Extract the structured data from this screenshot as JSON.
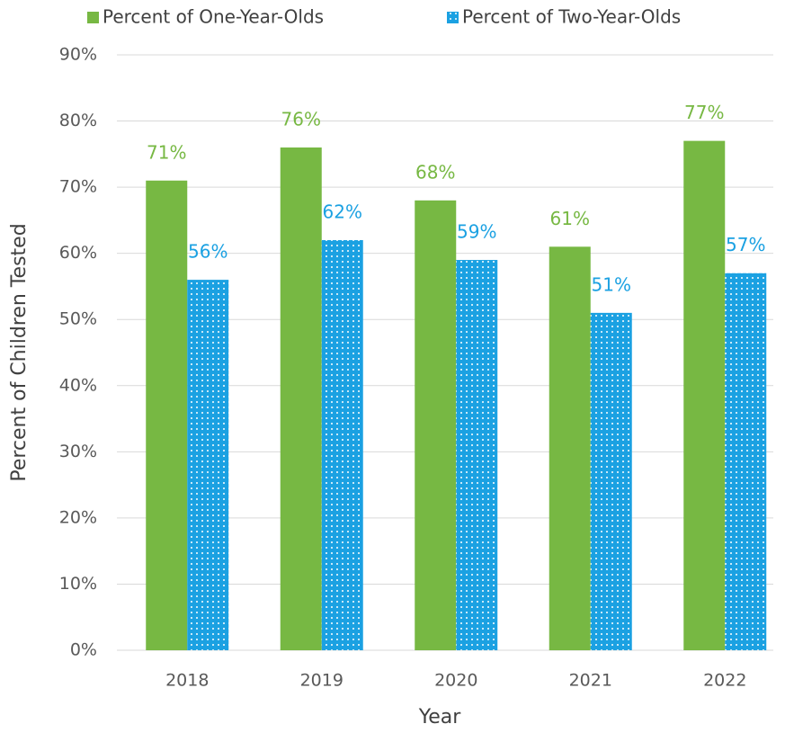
{
  "chart_data": {
    "type": "bar",
    "categories": [
      "2018",
      "2019",
      "2020",
      "2021",
      "2022"
    ],
    "series": [
      {
        "name": "Percent of One-Year-Olds",
        "color": "#77b843",
        "values": [
          71,
          76,
          68,
          61,
          77
        ],
        "value_labels": [
          "71%",
          "76%",
          "68%",
          "61%",
          "77%"
        ]
      },
      {
        "name": "Percent of Two-Year-Olds",
        "color": "#1ba1e2",
        "values": [
          56,
          62,
          59,
          51,
          57
        ],
        "value_labels": [
          "56%",
          "62%",
          "59%",
          "51%",
          "57%"
        ]
      }
    ],
    "x_label": "Year",
    "y_label": "Percent of Children Tested",
    "ylim": [
      0,
      90
    ],
    "yticks": [
      {
        "value": 0,
        "label": "0%"
      },
      {
        "value": 10,
        "label": "10%"
      },
      {
        "value": 20,
        "label": "20%"
      },
      {
        "value": 30,
        "label": "30%"
      },
      {
        "value": 40,
        "label": "40%"
      },
      {
        "value": 50,
        "label": "50%"
      },
      {
        "value": 60,
        "label": "60%"
      },
      {
        "value": 70,
        "label": "70%"
      },
      {
        "value": 80,
        "label": "80%"
      },
      {
        "value": 90,
        "label": "90%"
      }
    ],
    "grid": true,
    "legend": "top"
  }
}
